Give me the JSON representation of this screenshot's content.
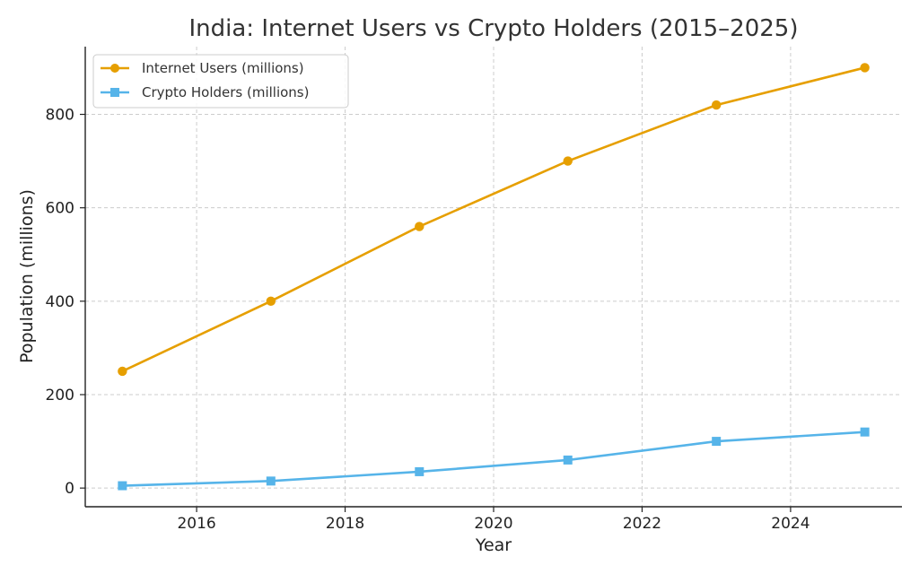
{
  "chart_data": {
    "type": "line",
    "title": "India: Internet Users vs Crypto Holders (2015–2025)",
    "xlabel": "Year",
    "ylabel": "Population (millions)",
    "x": [
      2015,
      2017,
      2019,
      2021,
      2023,
      2025
    ],
    "series": [
      {
        "name": "Internet Users (millions)",
        "values": [
          250,
          400,
          560,
          700,
          820,
          900
        ],
        "color": "#E69F00",
        "marker": "circle"
      },
      {
        "name": "Crypto Holders (millions)",
        "values": [
          5,
          15,
          35,
          60,
          100,
          120
        ],
        "color": "#56B4E9",
        "marker": "square"
      }
    ],
    "xlim": [
      2014.5,
      2025.5
    ],
    "ylim": [
      -40,
      945
    ],
    "xticks": [
      2016,
      2018,
      2020,
      2022,
      2024
    ],
    "yticks": [
      0,
      200,
      400,
      600,
      800
    ],
    "grid": true,
    "legend_position": "top-left"
  }
}
